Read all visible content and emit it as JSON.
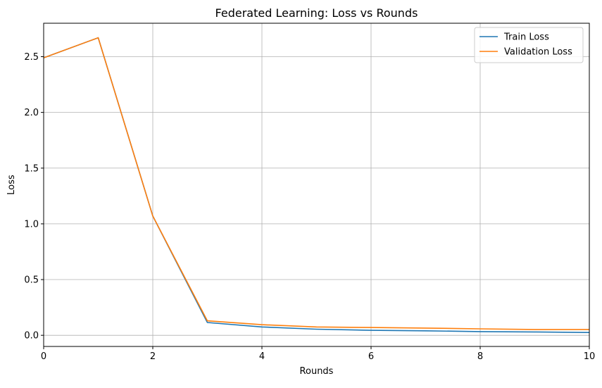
{
  "chart_data": {
    "type": "line",
    "title": "Federated Learning: Loss vs Rounds",
    "xlabel": "Rounds",
    "ylabel": "Loss",
    "xlim": [
      0,
      10
    ],
    "ylim": [
      -0.1,
      2.8
    ],
    "xticks": [
      0,
      2,
      4,
      6,
      8,
      10
    ],
    "yticks": [
      0.0,
      0.5,
      1.0,
      1.5,
      2.0,
      2.5
    ],
    "grid": true,
    "legend": "top-right",
    "x": [
      0,
      1,
      2,
      3,
      4,
      5,
      6,
      7,
      8,
      9,
      10
    ],
    "series": [
      {
        "name": "Train Loss",
        "color": "#1f77b4",
        "values": [
          2.49,
          2.67,
          1.07,
          0.115,
          0.075,
          0.055,
          0.045,
          0.04,
          0.033,
          0.03,
          0.025
        ]
      },
      {
        "name": "Validation Loss",
        "color": "#ff7f0e",
        "values": [
          2.49,
          2.67,
          1.07,
          0.13,
          0.095,
          0.075,
          0.07,
          0.065,
          0.058,
          0.052,
          0.052
        ]
      }
    ]
  }
}
